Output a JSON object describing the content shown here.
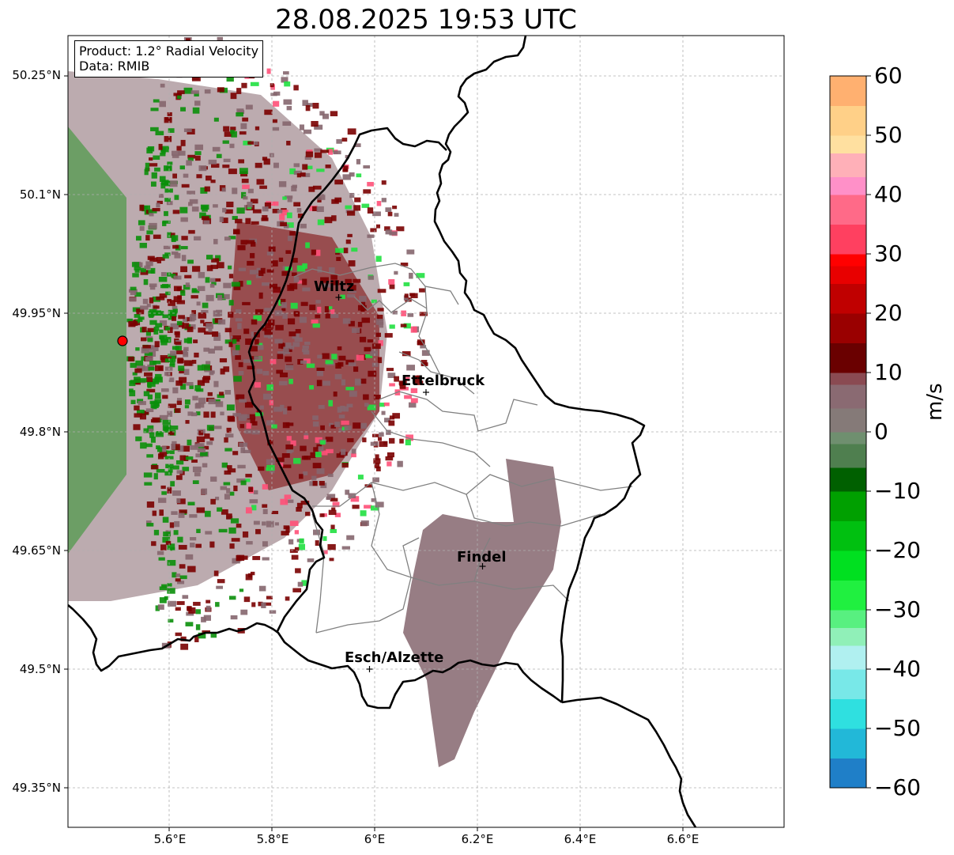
{
  "title": "28.08.2025 19:53 UTC",
  "info": {
    "product_line": "Product: 1.2° Radial Velocity",
    "data_line": "Data: RMIB"
  },
  "axes": {
    "lon_ticks": [
      "5.6°E",
      "5.8°E",
      "6°E",
      "6.2°E",
      "6.4°E",
      "6.6°E"
    ],
    "lat_ticks": [
      "50.25°N",
      "50.1°N",
      "49.95°N",
      "49.8°N",
      "49.65°N",
      "49.5°N",
      "49.35°N"
    ]
  },
  "towns": [
    {
      "name": "Wiltz",
      "lon": 5.93,
      "lat": 49.97
    },
    {
      "name": "Ettelbruck",
      "lon": 6.1,
      "lat": 49.85
    },
    {
      "name": "Findel",
      "lon": 6.21,
      "lat": 49.63
    },
    {
      "name": "Esch/Alzette",
      "lon": 5.99,
      "lat": 49.5
    }
  ],
  "radar_site": {
    "lon": 5.51,
    "lat": 49.92
  },
  "colorbar": {
    "unit": "m/s",
    "ticks": [
      "60",
      "50",
      "40",
      "30",
      "20",
      "10",
      "0",
      "−10",
      "−20",
      "−30",
      "−40",
      "−50",
      "−60"
    ],
    "range": [
      -60,
      60
    ],
    "stops": [
      {
        "v": -60,
        "c": "#1f7fc8"
      },
      {
        "v": -55,
        "c": "#22b8d8"
      },
      {
        "v": -50,
        "c": "#2fe0e0"
      },
      {
        "v": -45,
        "c": "#78e8e8"
      },
      {
        "v": -40,
        "c": "#b0f0f0"
      },
      {
        "v": -36,
        "c": "#90f0b8"
      },
      {
        "v": -33,
        "c": "#58f080"
      },
      {
        "v": -30,
        "c": "#20f040"
      },
      {
        "v": -25,
        "c": "#00e020"
      },
      {
        "v": -20,
        "c": "#00c010"
      },
      {
        "v": -15,
        "c": "#00a000"
      },
      {
        "v": -10,
        "c": "#006000"
      },
      {
        "v": -6,
        "c": "#4f7f4f"
      },
      {
        "v": -2,
        "c": "#6f8f6f"
      },
      {
        "v": 0,
        "c": "#857a78"
      },
      {
        "v": 4,
        "c": "#8a6a72"
      },
      {
        "v": 8,
        "c": "#8a4a52"
      },
      {
        "v": 10,
        "c": "#6a0000"
      },
      {
        "v": 15,
        "c": "#9a0000"
      },
      {
        "v": 20,
        "c": "#c00000"
      },
      {
        "v": 25,
        "c": "#e80000"
      },
      {
        "v": 28,
        "c": "#ff0000"
      },
      {
        "v": 30,
        "c": "#ff4060"
      },
      {
        "v": 35,
        "c": "#ff6a88"
      },
      {
        "v": 40,
        "c": "#ff90c8"
      },
      {
        "v": 43,
        "c": "#ffb0b8"
      },
      {
        "v": 47,
        "c": "#ffe0a0"
      },
      {
        "v": 50,
        "c": "#ffd088"
      },
      {
        "v": 55,
        "c": "#ffb070"
      },
      {
        "v": 60,
        "c": "#ff9040"
      }
    ]
  },
  "colors": {
    "background": "#ffffff",
    "inbound": "#0a8f0a",
    "outbound": "#7a0000",
    "near_zero": "#85666e",
    "border": "#000000",
    "canton_lines": "#808080"
  }
}
